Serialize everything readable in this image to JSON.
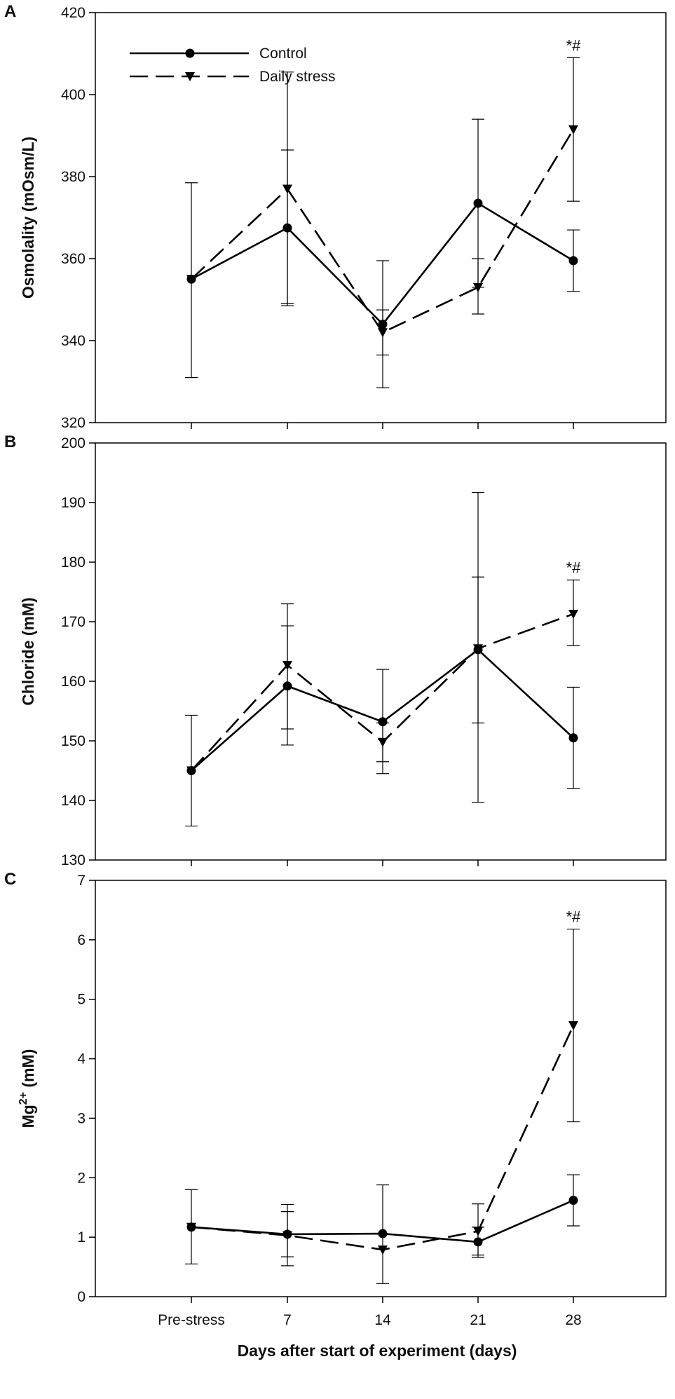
{
  "chart_data": [
    {
      "type": "line",
      "panel_label": "A",
      "ylabel": "Osmolality (mOsm/L)",
      "ylim": [
        320,
        420
      ],
      "yticks": [
        320,
        340,
        360,
        380,
        400,
        420
      ],
      "x_labels": [],
      "legend": {
        "placement": "top-left",
        "entries": [
          "Control",
          "Daily stress"
        ]
      },
      "annotation": {
        "text": "*#",
        "x": "28"
      },
      "categories": [
        "Pre-stress",
        "7",
        "14",
        "21",
        "28"
      ],
      "series": [
        {
          "name": "Control",
          "line": "solid",
          "marker": "circle",
          "values": [
            355,
            367.5,
            344,
            373.5,
            359.5
          ],
          "err_low": [
            331,
            349,
            328.5,
            353,
            352
          ],
          "err_high": [
            378.5,
            386.5,
            359.5,
            394,
            367
          ]
        },
        {
          "name": "Daily stress",
          "line": "dashed",
          "marker": "triangle-down",
          "values": [
            355,
            377,
            342,
            353,
            391.5
          ],
          "err_low": [
            355,
            348.5,
            336.5,
            346.5,
            374
          ],
          "err_high": [
            355,
            405.5,
            347.5,
            360,
            409
          ]
        }
      ]
    },
    {
      "type": "line",
      "panel_label": "B",
      "ylabel": "Chloride (mM)",
      "ylim": [
        130,
        200
      ],
      "yticks": [
        130,
        140,
        150,
        160,
        170,
        180,
        190,
        200
      ],
      "x_labels": [],
      "annotation": {
        "text": "*#",
        "x": "28"
      },
      "categories": [
        "Pre-stress",
        "7",
        "14",
        "21",
        "28"
      ],
      "series": [
        {
          "name": "Control",
          "line": "solid",
          "marker": "circle",
          "values": [
            145,
            159.2,
            153.2,
            165.3,
            150.5
          ],
          "err_low": [
            135.7,
            149.3,
            144.5,
            139.7,
            142
          ],
          "err_high": [
            154.3,
            169.3,
            162,
            191.7,
            159
          ]
        },
        {
          "name": "Daily stress",
          "line": "dashed",
          "marker": "triangle-down",
          "values": [
            145,
            162.7,
            149.8,
            165.5,
            171.3
          ],
          "err_low": [
            145,
            152,
            146.5,
            153,
            166
          ],
          "err_high": [
            145,
            173,
            153,
            177.5,
            177
          ]
        }
      ]
    },
    {
      "type": "line",
      "panel_label": "C",
      "ylabel_main": "Mg",
      "ylabel_sup": "2+",
      "ylabel_rest": " (mM)",
      "ylim": [
        0,
        7
      ],
      "yticks": [
        0,
        1,
        2,
        3,
        4,
        5,
        6,
        7
      ],
      "x_labels": [
        "Pre-stress",
        "7",
        "14",
        "21",
        "28"
      ],
      "xlabel": "Days after start of experiment (days)",
      "annotation": {
        "text": "*#",
        "x": "28"
      },
      "categories": [
        "Pre-stress",
        "7",
        "14",
        "21",
        "28"
      ],
      "series": [
        {
          "name": "Control",
          "line": "solid",
          "marker": "circle",
          "values": [
            1.17,
            1.05,
            1.06,
            0.92,
            1.62
          ],
          "err_low": [
            0.55,
            0.67,
            0.22,
            0.66,
            1.19
          ],
          "err_high": [
            1.8,
            1.43,
            1.88,
            1.17,
            2.05
          ]
        },
        {
          "name": "Daily stress",
          "line": "dashed",
          "marker": "triangle-down",
          "values": [
            1.17,
            1.03,
            0.79,
            1.1,
            4.56
          ],
          "err_low": [
            1.17,
            0.52,
            0.79,
            0.7,
            2.94
          ],
          "err_high": [
            1.17,
            1.55,
            0.79,
            1.56,
            6.18
          ]
        }
      ]
    }
  ]
}
